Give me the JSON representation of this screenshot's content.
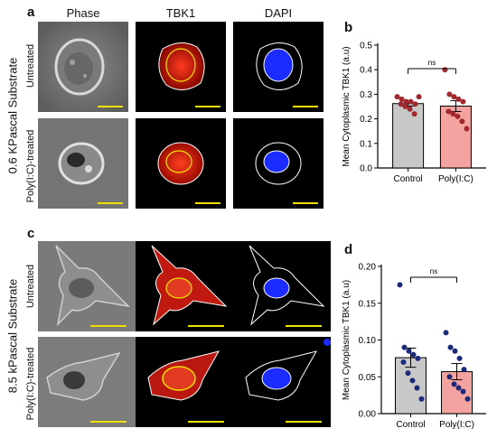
{
  "panels": {
    "a": "a",
    "b": "b",
    "c": "c",
    "d": "d"
  },
  "columns": [
    "Phase",
    "TBK1",
    "DAPI"
  ],
  "group_labels": {
    "top": "0.6 KPascal Substrate",
    "bottom": "8.5 kPascal Substrate"
  },
  "row_labels": {
    "top_1": "Untreated",
    "top_2": "Poly(I:C)-treated",
    "bottom_1": "Untreated",
    "bottom_2": "Poly(I:C)-treated"
  },
  "colors": {
    "control": "#c8c8c8",
    "polyic": "#f4a3a0",
    "dots_b": "#a0282f",
    "dots_d": "#1c2a7a",
    "tbk1": "#e02010",
    "dapi": "#1a2cff",
    "scalebar": "#f0e000"
  },
  "chart_data": [
    {
      "type": "bar",
      "panel": "b",
      "categories": [
        "Control",
        "Poly(I:C)"
      ],
      "values": [
        0.262,
        0.252
      ],
      "errors": [
        0.01,
        0.022
      ],
      "points": [
        [
          0.29,
          0.28,
          0.27,
          0.27,
          0.26,
          0.26,
          0.25,
          0.24,
          0.22,
          0.29
        ],
        [
          0.4,
          0.3,
          0.29,
          0.28,
          0.27,
          0.23,
          0.22,
          0.21,
          0.19,
          0.16
        ]
      ],
      "ylabel": "Mean Cytoplasmic TBK1 (a.u)",
      "ylim": [
        0,
        0.5
      ],
      "yticks": [
        "0.0",
        "0.1",
        "0.2",
        "0.3",
        "0.4",
        "0.5"
      ],
      "annotation": "ns"
    },
    {
      "type": "bar",
      "panel": "d",
      "categories": [
        "Control",
        "Poly(I:C)"
      ],
      "values": [
        0.076,
        0.057
      ],
      "errors": [
        0.013,
        0.011
      ],
      "points": [
        [
          0.175,
          0.09,
          0.085,
          0.08,
          0.075,
          0.07,
          0.055,
          0.045,
          0.035,
          0.02
        ],
        [
          0.11,
          0.09,
          0.085,
          0.075,
          0.06,
          0.05,
          0.04,
          0.035,
          0.03,
          0.02
        ]
      ],
      "ylabel": "Mean Cytoplasmic TBK1 (a.u)",
      "ylim": [
        0,
        0.2
      ],
      "yticks": [
        "0.00",
        "0.05",
        "0.10",
        "0.15",
        "0.20"
      ],
      "annotation": "ns"
    }
  ]
}
